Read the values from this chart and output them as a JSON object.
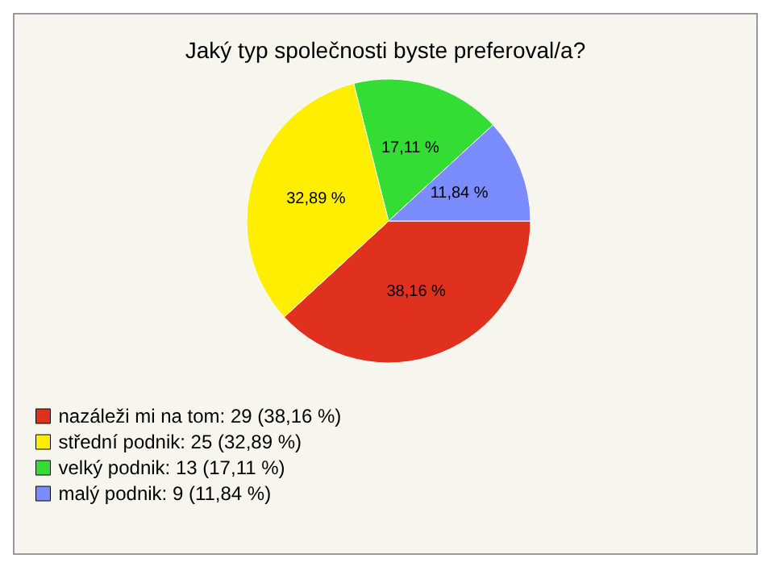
{
  "chart_data": {
    "type": "pie",
    "title": "Jaký typ společnosti byste preferoval/a?",
    "categories": [
      "nazáleži mi na tom: 29 (38,16 %)",
      "střední podnik: 25 (32,89 %)",
      "velký podnik: 13 (17,11 %)",
      "malý podnik: 9 (11,84 %)"
    ],
    "values": [
      38.16,
      32.89,
      17.11,
      11.84
    ],
    "colors": [
      "#e0301e",
      "#ffee00",
      "#33dd33",
      "#7b8cff"
    ],
    "value_labels": [
      "38,16 %",
      "32,89 %",
      "17,11 %",
      "11,84 %"
    ],
    "legend": "bottom left"
  }
}
